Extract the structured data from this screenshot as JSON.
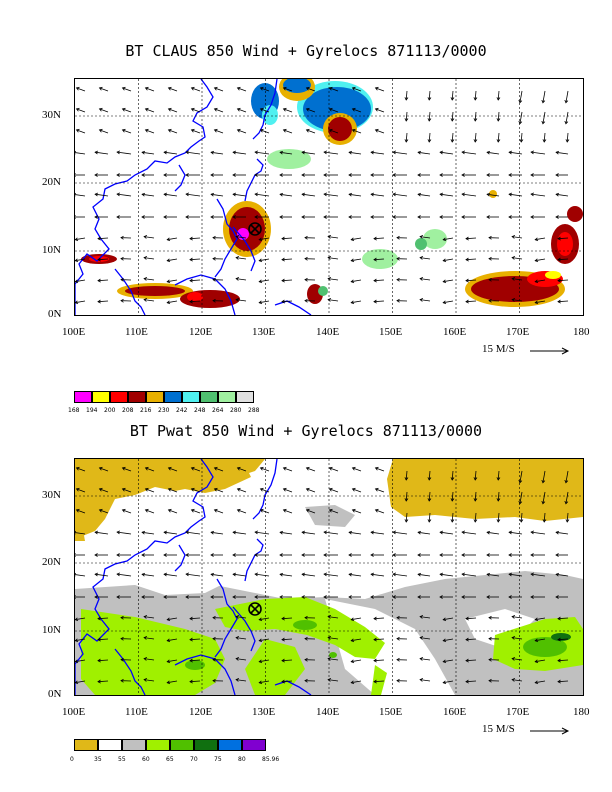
{
  "panel1": {
    "title": "BT CLAUS 850 Wind + Gyrelocs 871113/0000",
    "y_labels": [
      "30N",
      "20N",
      "10N",
      "0N"
    ],
    "x_labels": [
      "100E",
      "110E",
      "120E",
      "130E",
      "140E",
      "150E",
      "160E",
      "170E",
      "180"
    ],
    "scale_label": "15 M/S",
    "legend_colors": [
      "#ff00ff",
      "#ffff00",
      "#ff0000",
      "#a00000",
      "#e8b000",
      "#0070d0",
      "#50f0f0",
      "#50c070",
      "#a0f0a0",
      "#e0e0e0"
    ],
    "legend_labels": [
      "168",
      "194",
      "200",
      "208",
      "216",
      "230",
      "242",
      "248",
      "264",
      "280",
      "288"
    ]
  },
  "panel2": {
    "title": "BT Pwat 850 Wind + Gyrelocs 871113/0000",
    "y_labels": [
      "30N",
      "20N",
      "10N",
      "0N"
    ],
    "x_labels": [
      "100E",
      "110E",
      "120E",
      "130E",
      "140E",
      "150E",
      "160E",
      "170E",
      "180"
    ],
    "scale_label": "15 M/S",
    "legend_colors": [
      "#e0b818",
      "#ffffff",
      "#c0c0c0",
      "#a0f000",
      "#50c000",
      "#107010",
      "#0070e0",
      "#8000d0"
    ],
    "legend_labels": [
      "0",
      "35",
      "55",
      "60",
      "65",
      "70",
      "75",
      "80",
      "85.96"
    ]
  },
  "map_extent": {
    "lon": [
      100,
      180
    ],
    "lat": [
      0,
      35
    ]
  },
  "gyre_location": {
    "lon": 128.5,
    "lat": 12.5
  },
  "colors": {
    "coastline": "#0000ff",
    "grid": "#000000"
  }
}
